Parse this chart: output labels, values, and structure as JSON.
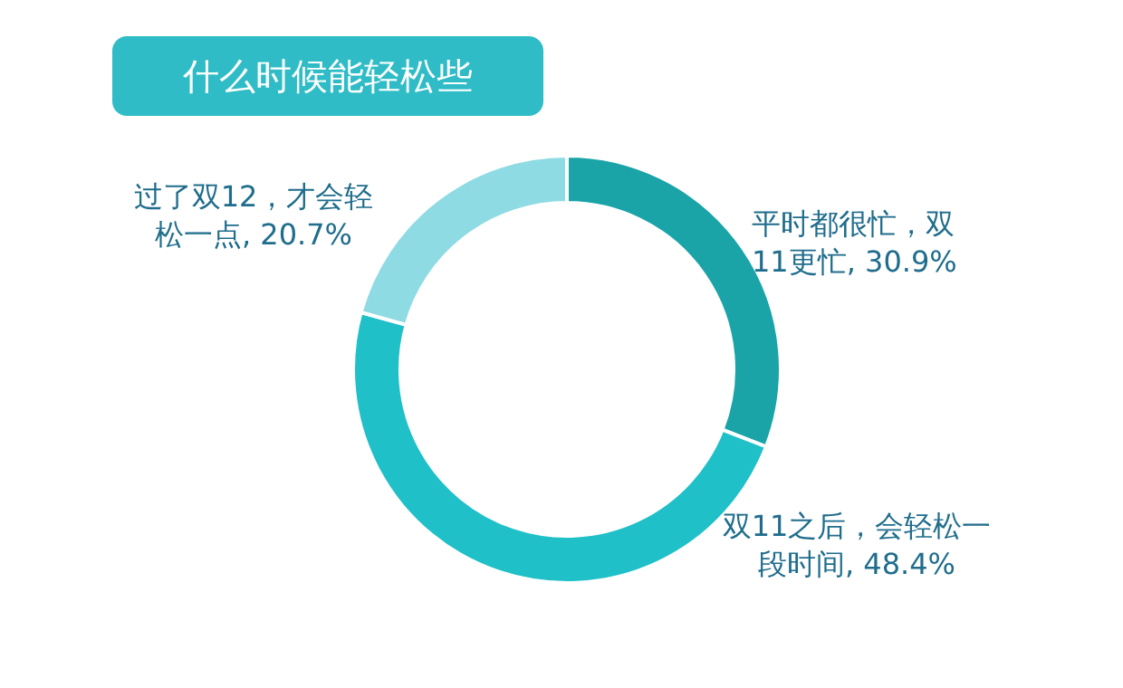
{
  "chart_data": {
    "type": "donut",
    "title": "什么时候能轻松些",
    "categories": [
      "平时都很忙，双11更忙",
      "双11之后，会轻松一段时间",
      "过了双12，才会轻松一点"
    ],
    "values": [
      30.9,
      48.4,
      20.7
    ],
    "value_labels": [
      "30.9%",
      "48.4%",
      "20.7%"
    ],
    "colors": [
      "#1aa4a8",
      "#1fc0c8",
      "#8fdbe3"
    ]
  }
}
